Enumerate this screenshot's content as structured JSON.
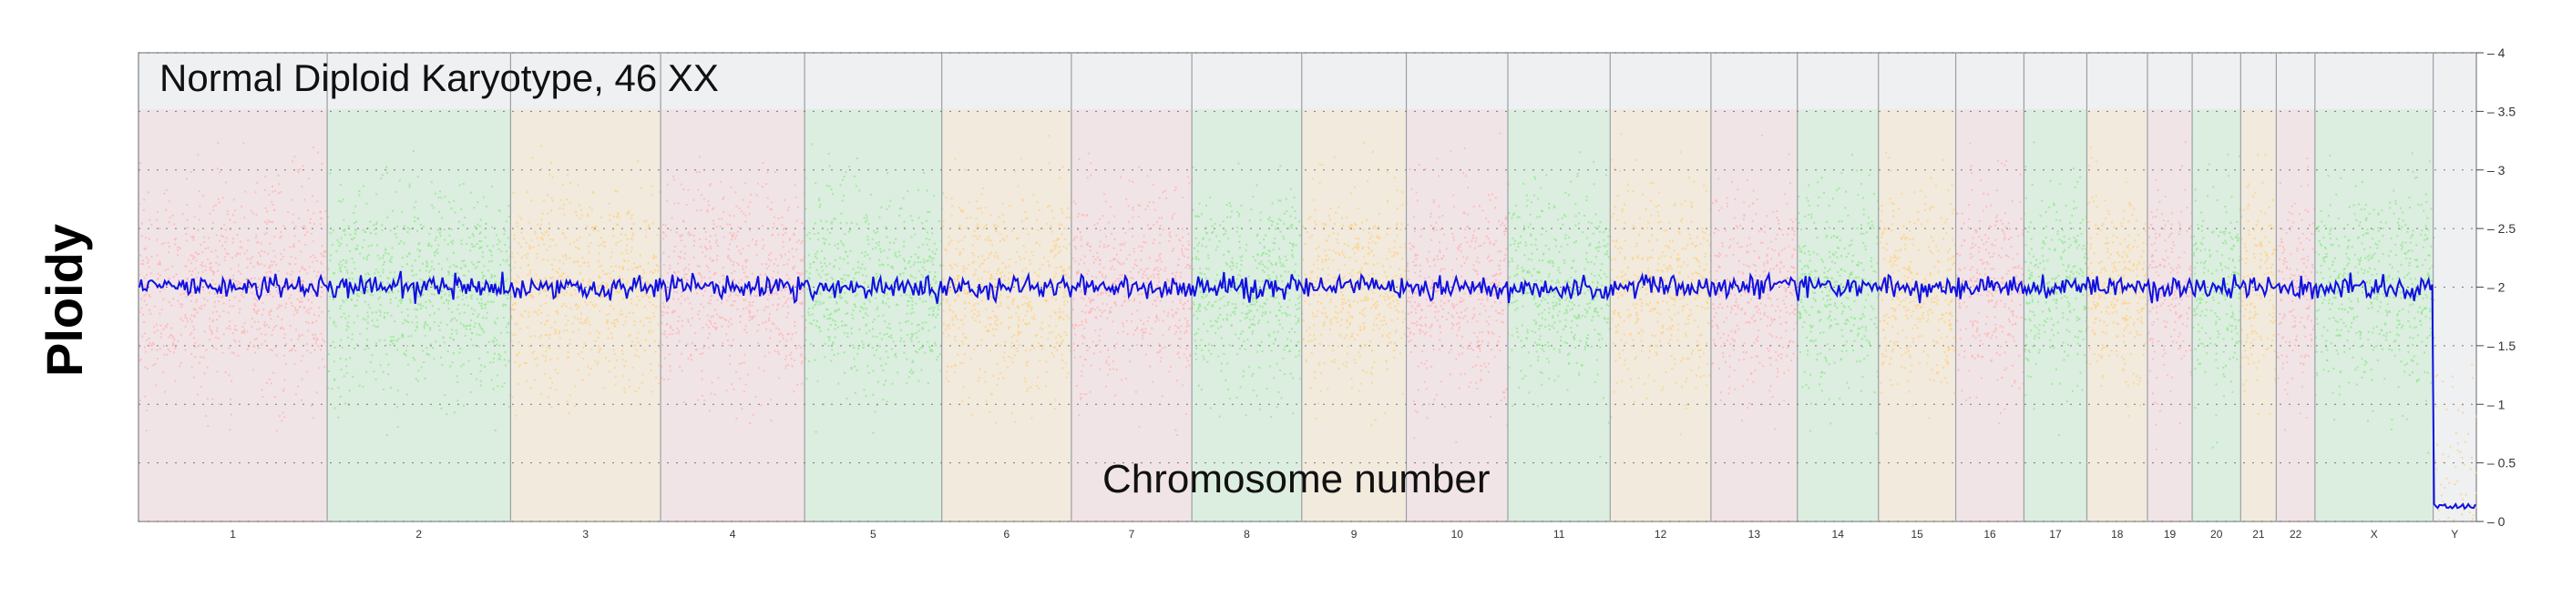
{
  "chart_data": {
    "type": "scatter",
    "title": "Normal Diploid Karyotype, 46 XX",
    "xlabel": "Chromosome number",
    "ylabel": "Ploidy",
    "ylim": [
      0,
      4
    ],
    "y_ticks": [
      "0",
      "0.5",
      "1",
      "1.5",
      "2",
      "2.5",
      "3",
      "3.5",
      "4"
    ],
    "grid": true,
    "categories": [
      "1",
      "2",
      "3",
      "4",
      "5",
      "6",
      "7",
      "8",
      "9",
      "10",
      "11",
      "12",
      "13",
      "14",
      "15",
      "16",
      "17",
      "18",
      "19",
      "20",
      "21",
      "22",
      "X",
      "Y"
    ],
    "series": [
      {
        "values": [
          2,
          2,
          2,
          2,
          2,
          2,
          2,
          2,
          2,
          2,
          2,
          2,
          2,
          2,
          2,
          2,
          2,
          2,
          2,
          2,
          2,
          2,
          2,
          0.1
        ]
      }
    ],
    "colors": {
      "pink": "#ffb3b3",
      "green": "#8de88d",
      "orange": "#ffd080",
      "line": "#1010e0",
      "background": "#eef0f2"
    }
  }
}
